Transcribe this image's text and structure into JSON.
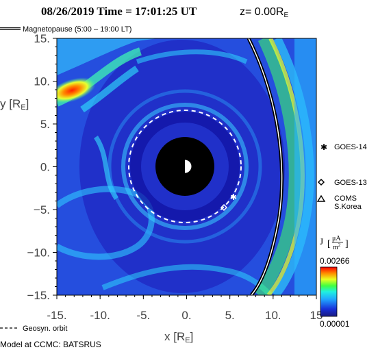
{
  "header": {
    "title_prefix": "08/26/2019 Time = 17:01:25 UT",
    "z_label": "z= 0.00R",
    "z_subscript": "E"
  },
  "legend": {
    "magnetopause_label": "Magnetopause (5:00 – 19:00 LT)",
    "geosyn_label": "Geosyn. orbit",
    "credit": "Model at CCMC: BATSRUS"
  },
  "satellites": [
    {
      "name": "GOES-14",
      "symbol": "asterisk",
      "x": 5.8,
      "y": -3.4
    },
    {
      "name": "GOES-13",
      "symbol": "diamond",
      "x": 4.6,
      "y": -4.6
    },
    {
      "name": "COMS S.Korea",
      "label_lines": [
        "COMS",
        "S.Korea"
      ],
      "symbol": "triangle",
      "x": null,
      "y": null
    }
  ],
  "colorbar": {
    "label": "J",
    "unit_numerator": "μA",
    "unit_denominator": "m",
    "unit_exponent": "2",
    "max_label": "0.00266",
    "min_label": "0.00001",
    "max_value": 0.00266,
    "min_value": 1e-05
  },
  "colors": {
    "background": "#1e2cc8",
    "earth_shadow": "#000000",
    "geosyn_orbit": "#ffffff",
    "magnetopause": "#000000"
  },
  "chart_data": {
    "type": "heatmap",
    "xlabel": "x [R",
    "xlabel_sub": "E",
    "xlabel_end": "]",
    "ylabel": "y [R",
    "ylabel_sub": "E",
    "ylabel_end": "]",
    "xlim": [
      -15.0,
      15.0
    ],
    "ylim": [
      -15.0,
      15.0
    ],
    "x_ticks": [
      {
        "value": -15,
        "label": "-15."
      },
      {
        "value": -10,
        "label": "-10."
      },
      {
        "value": -5,
        "label": "-5."
      },
      {
        "value": 0,
        "label": "0."
      },
      {
        "value": 5,
        "label": "5."
      },
      {
        "value": 10,
        "label": "10."
      },
      {
        "value": 15,
        "label": "15"
      }
    ],
    "y_ticks": [
      {
        "value": 15,
        "label": "15."
      },
      {
        "value": 10,
        "label": "10."
      },
      {
        "value": 5,
        "label": "5."
      },
      {
        "value": 0,
        "label": "0."
      },
      {
        "value": -5,
        "label": "−5."
      },
      {
        "value": -10,
        "label": "−10."
      },
      {
        "value": -15,
        "label": "−15."
      }
    ],
    "earth_shadow_radius": 3.3,
    "geosyn_radius": 6.6,
    "magnetopause_standoff": 12.8
  }
}
